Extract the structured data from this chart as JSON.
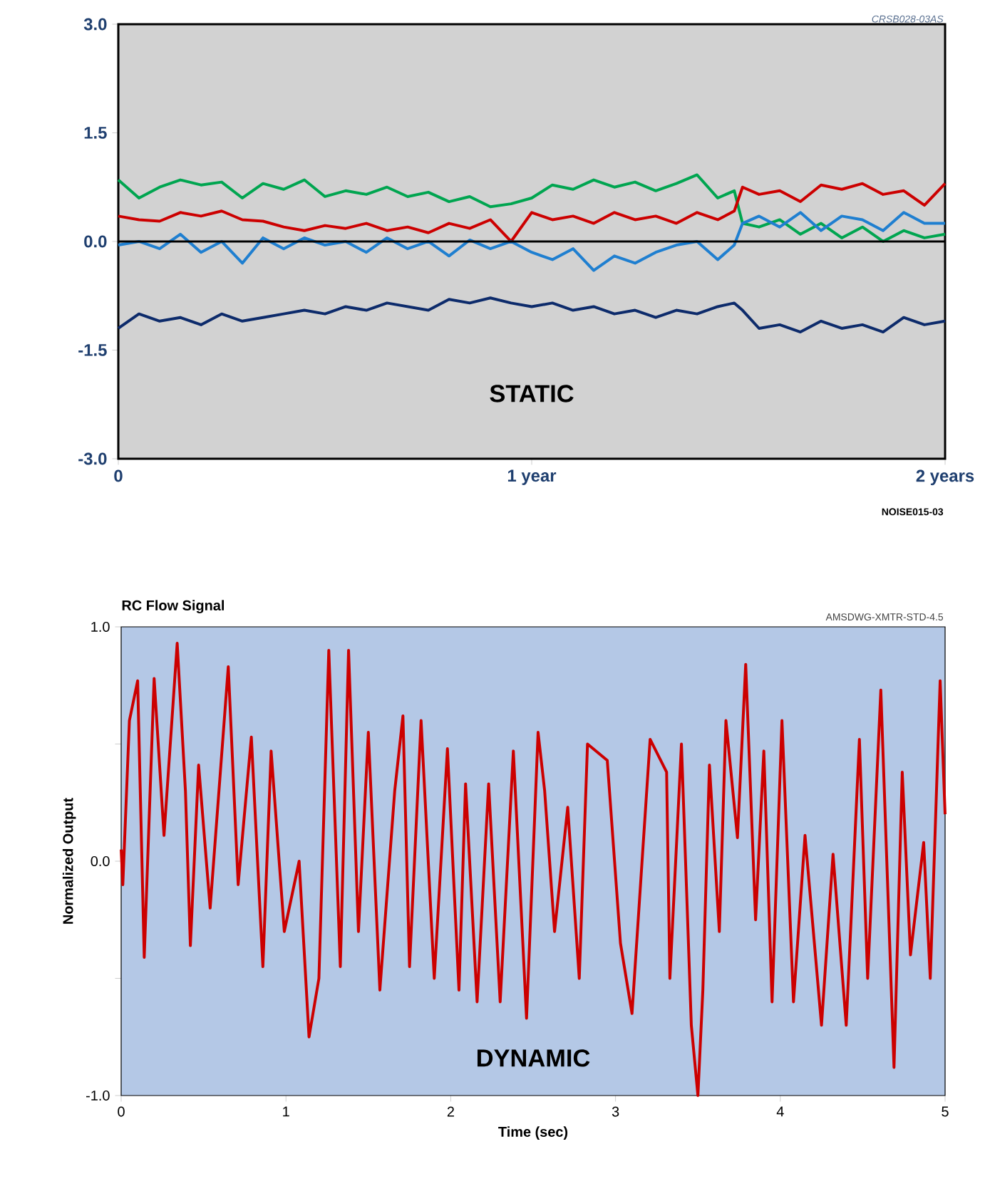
{
  "chart_data": [
    {
      "type": "line",
      "annotations": [
        "STATIC",
        "CRSB028-03AS",
        "NOISE015-03"
      ],
      "x": [
        0,
        0.05,
        0.1,
        0.15,
        0.2,
        0.25,
        0.3,
        0.35,
        0.4,
        0.45,
        0.5,
        0.55,
        0.6,
        0.65,
        0.7,
        0.75,
        0.8,
        0.85,
        0.9,
        0.95,
        1.0,
        1.05,
        1.1,
        1.15,
        1.2,
        1.25,
        1.3,
        1.35,
        1.4,
        1.45,
        1.49,
        1.51,
        1.55,
        1.6,
        1.65,
        1.7,
        1.75,
        1.8,
        1.85,
        1.9,
        1.95,
        2.0
      ],
      "series": [
        {
          "color": "#00a550",
          "values": [
            0.85,
            0.6,
            0.75,
            0.85,
            0.78,
            0.82,
            0.6,
            0.8,
            0.72,
            0.85,
            0.62,
            0.7,
            0.65,
            0.75,
            0.62,
            0.68,
            0.55,
            0.62,
            0.48,
            0.52,
            0.6,
            0.78,
            0.72,
            0.85,
            0.75,
            0.82,
            0.7,
            0.8,
            0.92,
            0.6,
            0.7,
            0.25,
            0.2,
            0.3,
            0.1,
            0.25,
            0.05,
            0.2,
            0.0,
            0.15,
            0.05,
            0.1
          ]
        },
        {
          "color": "#cc0000",
          "values": [
            0.35,
            0.3,
            0.28,
            0.4,
            0.35,
            0.42,
            0.3,
            0.28,
            0.2,
            0.15,
            0.22,
            0.18,
            0.25,
            0.15,
            0.2,
            0.12,
            0.25,
            0.18,
            0.3,
            0.0,
            0.4,
            0.3,
            0.35,
            0.25,
            0.4,
            0.3,
            0.35,
            0.25,
            0.4,
            0.3,
            0.42,
            0.75,
            0.65,
            0.7,
            0.55,
            0.78,
            0.72,
            0.8,
            0.65,
            0.7,
            0.5,
            0.8
          ]
        },
        {
          "color": "#1f7fd0",
          "values": [
            -0.05,
            0.0,
            -0.1,
            0.1,
            -0.15,
            0.0,
            -0.3,
            0.05,
            -0.1,
            0.05,
            -0.05,
            0.0,
            -0.15,
            0.05,
            -0.1,
            0.0,
            -0.2,
            0.02,
            -0.1,
            0.0,
            -0.15,
            -0.25,
            -0.1,
            -0.4,
            -0.2,
            -0.3,
            -0.15,
            -0.05,
            0.0,
            -0.25,
            -0.05,
            0.25,
            0.35,
            0.2,
            0.4,
            0.15,
            0.35,
            0.3,
            0.15,
            0.4,
            0.25,
            0.25
          ]
        },
        {
          "color": "#0d2b6b",
          "values": [
            -1.2,
            -1.0,
            -1.1,
            -1.05,
            -1.15,
            -1.0,
            -1.1,
            -1.05,
            -1.0,
            -0.95,
            -1.0,
            -0.9,
            -0.95,
            -0.85,
            -0.9,
            -0.95,
            -0.8,
            -0.85,
            -0.78,
            -0.85,
            -0.9,
            -0.85,
            -0.95,
            -0.9,
            -1.0,
            -0.95,
            -1.05,
            -0.95,
            -1.0,
            -0.9,
            -0.85,
            -0.95,
            -1.2,
            -1.15,
            -1.25,
            -1.1,
            -1.2,
            -1.15,
            -1.25,
            -1.05,
            -1.15,
            -1.1
          ]
        }
      ],
      "xlim": [
        0,
        2
      ],
      "xticks": [
        {
          "value": 0,
          "label": "0"
        },
        {
          "value": 1,
          "label": "1 year"
        },
        {
          "value": 2,
          "label": "2 years"
        }
      ],
      "ylim": [
        -3,
        3
      ],
      "yticks": [
        {
          "value": -3,
          "label": "-3.0"
        },
        {
          "value": -1.5,
          "label": "-1.5"
        },
        {
          "value": 0,
          "label": "0.0"
        },
        {
          "value": 1.5,
          "label": "1.5"
        },
        {
          "value": 3,
          "label": "3.0"
        }
      ],
      "ref_lines": [
        {
          "axis": "y",
          "value": 0,
          "color": "#000000"
        }
      ]
    },
    {
      "type": "line",
      "title": "RC Flow Signal",
      "xlabel": "Time (sec)",
      "ylabel": "Normalized Output",
      "annotations": [
        "AMSDWG-XMTR-STD-4.5",
        "DYNAMIC"
      ],
      "x": [
        0,
        0.01,
        0.05,
        0.1,
        0.14,
        0.2,
        0.26,
        0.34,
        0.39,
        0.42,
        0.47,
        0.54,
        0.65,
        0.71,
        0.79,
        0.86,
        0.91,
        0.99,
        1.08,
        1.14,
        1.2,
        1.26,
        1.33,
        1.38,
        1.44,
        1.5,
        1.57,
        1.66,
        1.71,
        1.75,
        1.82,
        1.9,
        1.98,
        2.05,
        2.09,
        2.16,
        2.23,
        2.3,
        2.38,
        2.46,
        2.53,
        2.57,
        2.63,
        2.71,
        2.78,
        2.83,
        2.95,
        3.03,
        3.1,
        3.21,
        3.31,
        3.33,
        3.4,
        3.46,
        3.5,
        3.53,
        3.57,
        3.63,
        3.67,
        3.74,
        3.79,
        3.85,
        3.9,
        3.95,
        4.01,
        4.08,
        4.15,
        4.25,
        4.32,
        4.4,
        4.48,
        4.53,
        4.61,
        4.69,
        4.74,
        4.79,
        4.87,
        4.91,
        4.97,
        5.0
      ],
      "series": [
        {
          "color": "#cc0000",
          "values": [
            0.05,
            -0.1,
            0.6,
            0.77,
            -0.41,
            0.78,
            0.11,
            0.93,
            0.3,
            -0.36,
            0.41,
            -0.2,
            0.83,
            -0.1,
            0.53,
            -0.45,
            0.47,
            -0.3,
            0.0,
            -0.75,
            -0.5,
            0.9,
            -0.45,
            0.9,
            -0.3,
            0.55,
            -0.55,
            0.3,
            0.62,
            -0.45,
            0.6,
            -0.5,
            0.48,
            -0.55,
            0.33,
            -0.6,
            0.33,
            -0.6,
            0.47,
            -0.67,
            0.55,
            0.3,
            -0.3,
            0.23,
            -0.5,
            0.5,
            0.43,
            -0.35,
            -0.65,
            0.52,
            0.38,
            -0.5,
            0.5,
            -0.7,
            -1.0,
            -0.55,
            0.41,
            -0.3,
            0.6,
            0.1,
            0.84,
            -0.25,
            0.47,
            -0.6,
            0.6,
            -0.6,
            0.11,
            -0.7,
            0.03,
            -0.7,
            0.52,
            -0.5,
            0.73,
            -0.88,
            0.38,
            -0.4,
            0.08,
            -0.5,
            0.77,
            0.2
          ]
        }
      ],
      "xlim": [
        0,
        5
      ],
      "xticks": [
        0,
        1,
        2,
        3,
        4,
        5
      ],
      "ylim": [
        -1,
        1
      ],
      "yticks": [
        {
          "value": -1,
          "label": "-1.0"
        },
        {
          "value": -0.5,
          "label": null
        },
        {
          "value": 0,
          "label": "0.0"
        },
        {
          "value": 0.5,
          "label": null
        },
        {
          "value": 1,
          "label": "1.0"
        }
      ]
    }
  ]
}
